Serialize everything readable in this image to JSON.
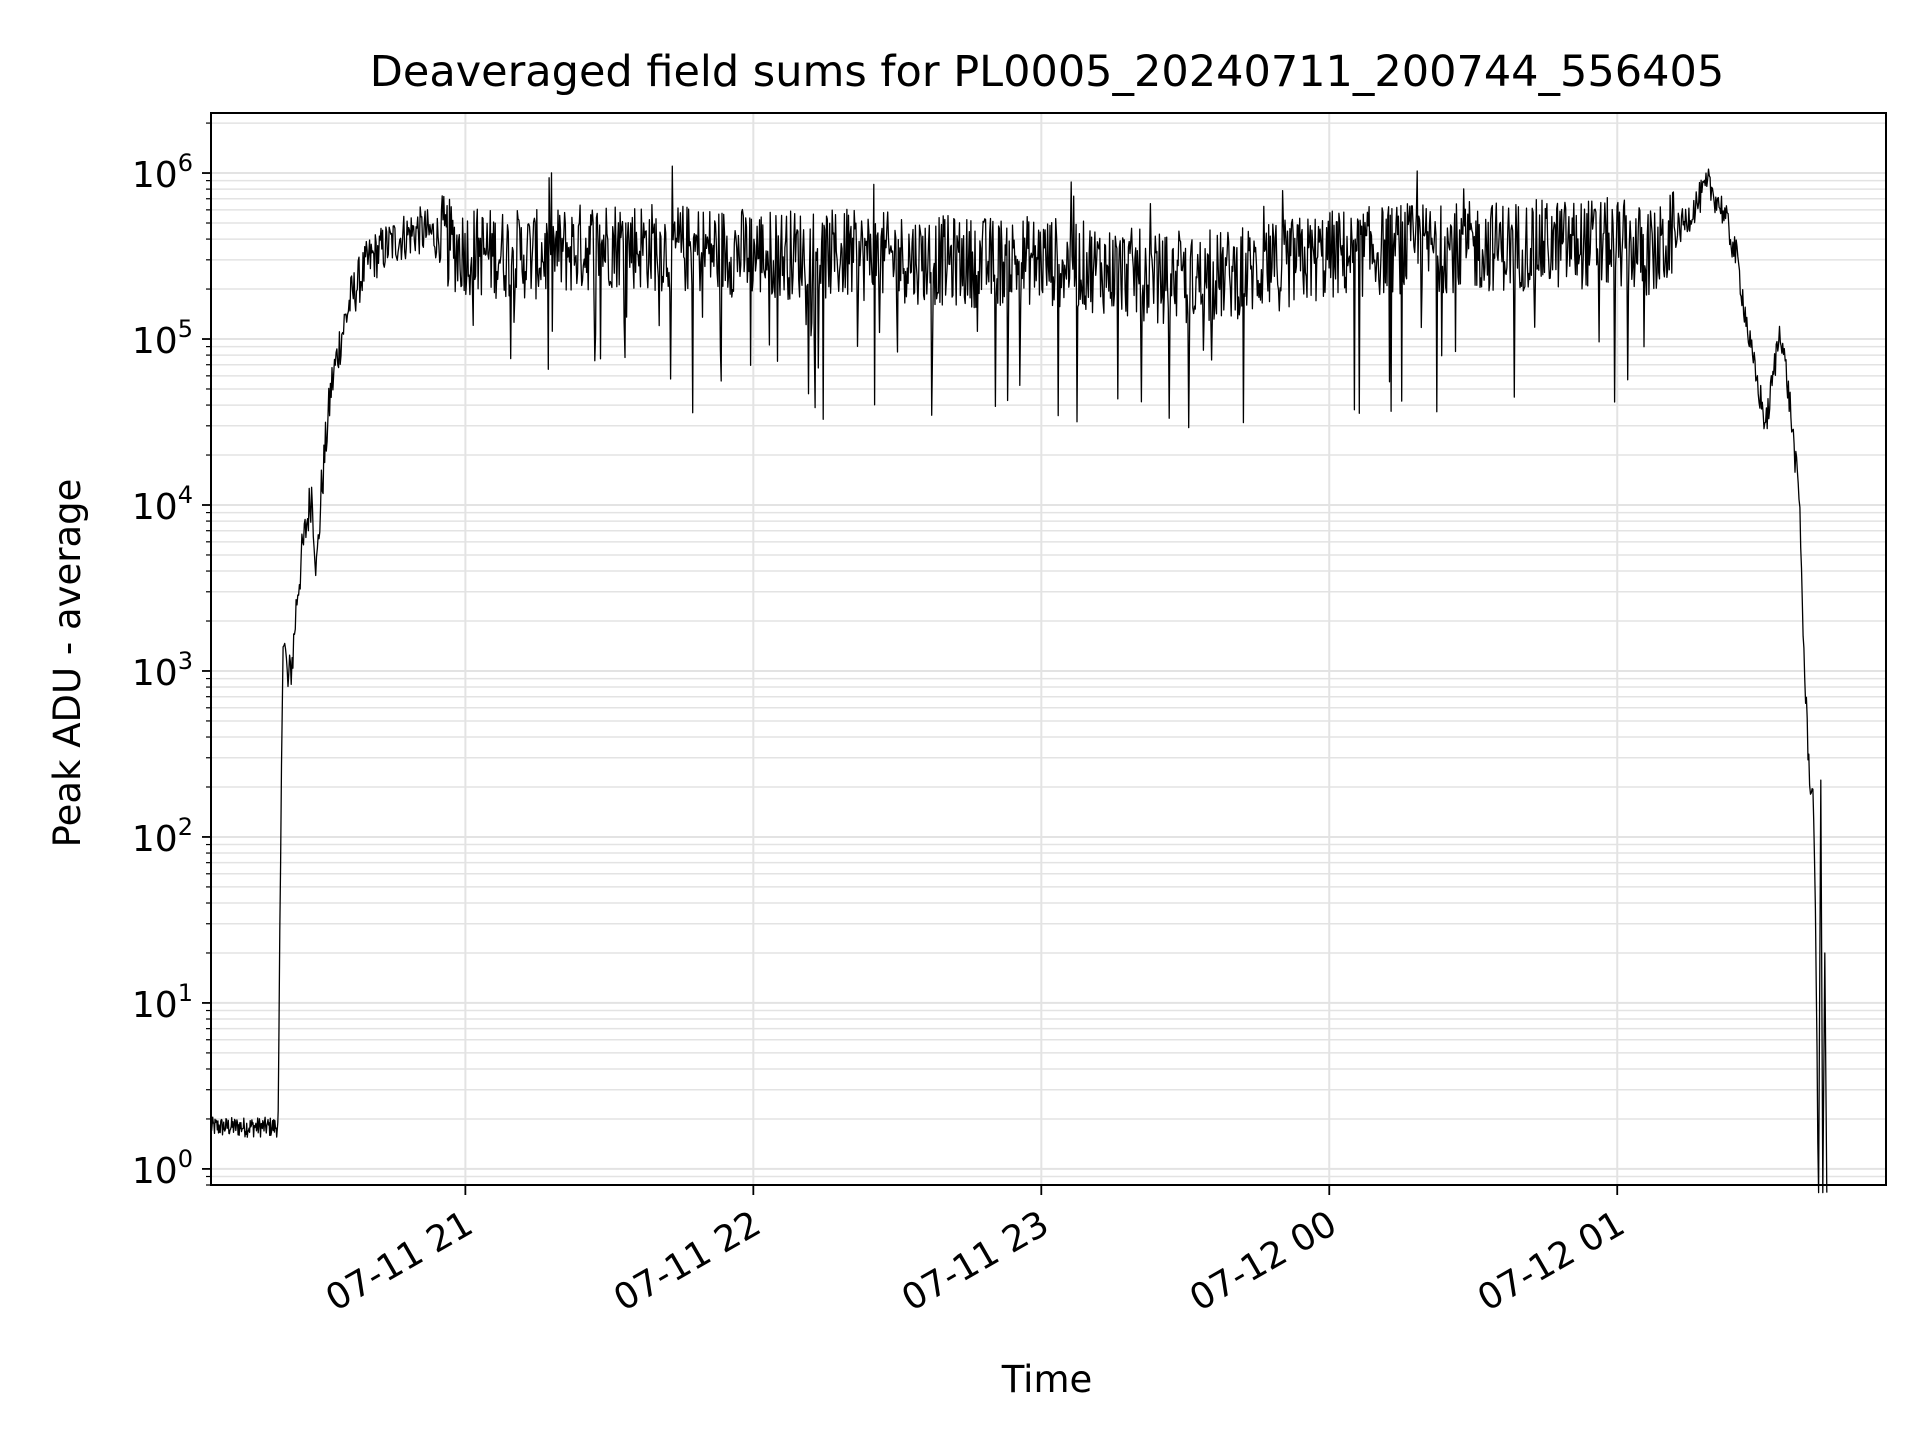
{
  "chart_data": {
    "type": "line",
    "title": "Deaveraged field sums for PL0005_20240711_200744_556405",
    "xlabel": "Time",
    "ylabel": "Peak ADU - average",
    "yscale": "log",
    "ylim": [
      0.8,
      2300000
    ],
    "xlim": [
      "2024-07-11 20:07",
      "2024-07-12 01:56"
    ],
    "grid": true,
    "line_color": "#000000",
    "grid_color": "#e3e3e3",
    "x_ticks": [
      {
        "value": "2024-07-11 21:00",
        "label": "07-11 21"
      },
      {
        "value": "2024-07-11 22:00",
        "label": "07-11 22"
      },
      {
        "value": "2024-07-11 23:00",
        "label": "07-11 23"
      },
      {
        "value": "2024-07-12 00:00",
        "label": "07-12 00"
      },
      {
        "value": "2024-07-12 01:00",
        "label": "07-12 01"
      }
    ],
    "y_ticks": [
      {
        "value": 1,
        "base": "10",
        "exp": "0"
      },
      {
        "value": 10,
        "base": "10",
        "exp": "1"
      },
      {
        "value": 100,
        "base": "10",
        "exp": "2"
      },
      {
        "value": 1000,
        "base": "10",
        "exp": "3"
      },
      {
        "value": 10000,
        "base": "10",
        "exp": "4"
      },
      {
        "value": 100000,
        "base": "10",
        "exp": "5"
      },
      {
        "value": 1000000,
        "base": "10",
        "exp": "6"
      }
    ],
    "series": [
      {
        "x": [
          "2024-07-11 20:07",
          "2024-07-11 20:21",
          "2024-07-11 20:22",
          "2024-07-11 20:23",
          "2024-07-11 20:24",
          "2024-07-11 20:25",
          "2024-07-11 20:26",
          "2024-07-11 20:27",
          "2024-07-11 20:28",
          "2024-07-11 20:29",
          "2024-07-11 20:30",
          "2024-07-11 20:31",
          "2024-07-11 20:32",
          "2024-07-11 20:34",
          "2024-07-11 20:36",
          "2024-07-11 20:38",
          "2024-07-11 20:40",
          "2024-07-11 20:43",
          "2024-07-11 20:46",
          "2024-07-11 20:50",
          "2024-07-11 20:54",
          "2024-07-11 20:58",
          "2024-07-11 21:05",
          "2024-07-11 21:15",
          "2024-07-11 21:30",
          "2024-07-11 21:45",
          "2024-07-11 22:00",
          "2024-07-11 22:15",
          "2024-07-11 22:30",
          "2024-07-11 22:45",
          "2024-07-11 23:00",
          "2024-07-11 23:15",
          "2024-07-11 23:30",
          "2024-07-11 23:45",
          "2024-07-12 00:00",
          "2024-07-12 00:15",
          "2024-07-12 00:30",
          "2024-07-12 00:45",
          "2024-07-12 01:00",
          "2024-07-12 01:08",
          "2024-07-12 01:14",
          "2024-07-12 01:19",
          "2024-07-12 01:22",
          "2024-07-12 01:25",
          "2024-07-12 01:28",
          "2024-07-12 01:31",
          "2024-07-12 01:34",
          "2024-07-12 01:36",
          "2024-07-12 01:38",
          "2024-07-12 01:39",
          "2024-07-12 01:40",
          "2024-07-12 01:41",
          "2024-07-12 01:42"
        ],
        "y": [
          1.8,
          1.8,
          2000,
          800,
          1200,
          3000,
          5000,
          8000,
          12000,
          4000,
          12000,
          25000,
          50000,
          100000,
          170000,
          230000,
          300000,
          350000,
          400000,
          450000,
          420000,
          350000,
          330000,
          320000,
          380000,
          350000,
          330000,
          320000,
          310000,
          290000,
          300000,
          260000,
          220000,
          260000,
          320000,
          350000,
          360000,
          370000,
          380000,
          320000,
          500000,
          850000,
          600000,
          300000,
          80000,
          30000,
          120000,
          40000,
          10000,
          1000,
          250,
          150,
          0.5
        ]
      }
    ]
  }
}
